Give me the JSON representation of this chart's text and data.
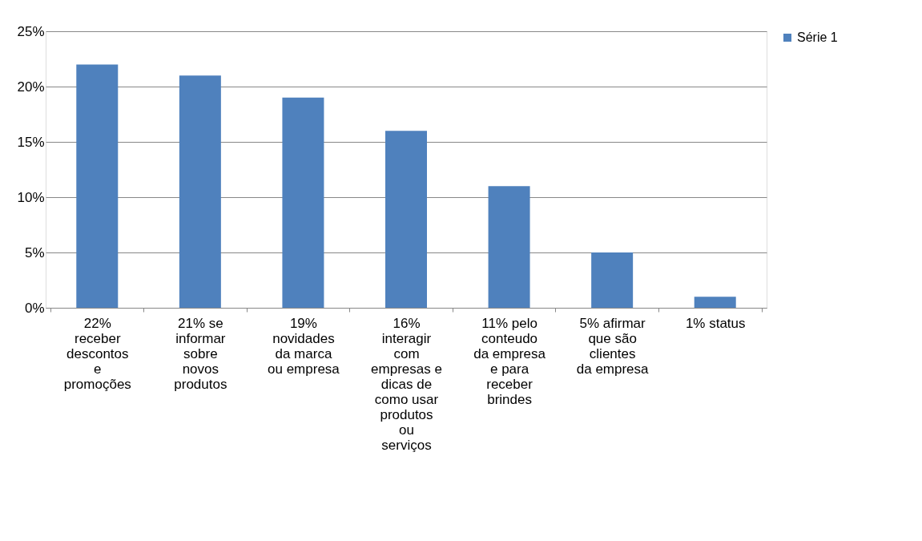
{
  "chart_data": {
    "type": "bar",
    "categories": [
      "22% receber descontos e promoções",
      "21% se informar sobre novos produtos",
      "19% novidades da marca ou empresa",
      "16% interagir com empresas e dicas de como usar produtos ou serviços",
      "11% pelo conteudo da empresa e para receber brindes",
      "5% afirmar que são clientes da empresa",
      "1% status"
    ],
    "series": [
      {
        "name": "Série 1",
        "color": "#4f81bd",
        "values": [
          22,
          21,
          19,
          16,
          11,
          5,
          1
        ]
      }
    ],
    "ylim": [
      0,
      25
    ],
    "yticks": [
      {
        "value": 0,
        "label": "0%"
      },
      {
        "value": 5,
        "label": "5%"
      },
      {
        "value": 10,
        "label": "10%"
      },
      {
        "value": 15,
        "label": "15%"
      },
      {
        "value": 20,
        "label": "20%"
      },
      {
        "value": 25,
        "label": "25%"
      }
    ],
    "grid": "y",
    "legend": "right"
  }
}
